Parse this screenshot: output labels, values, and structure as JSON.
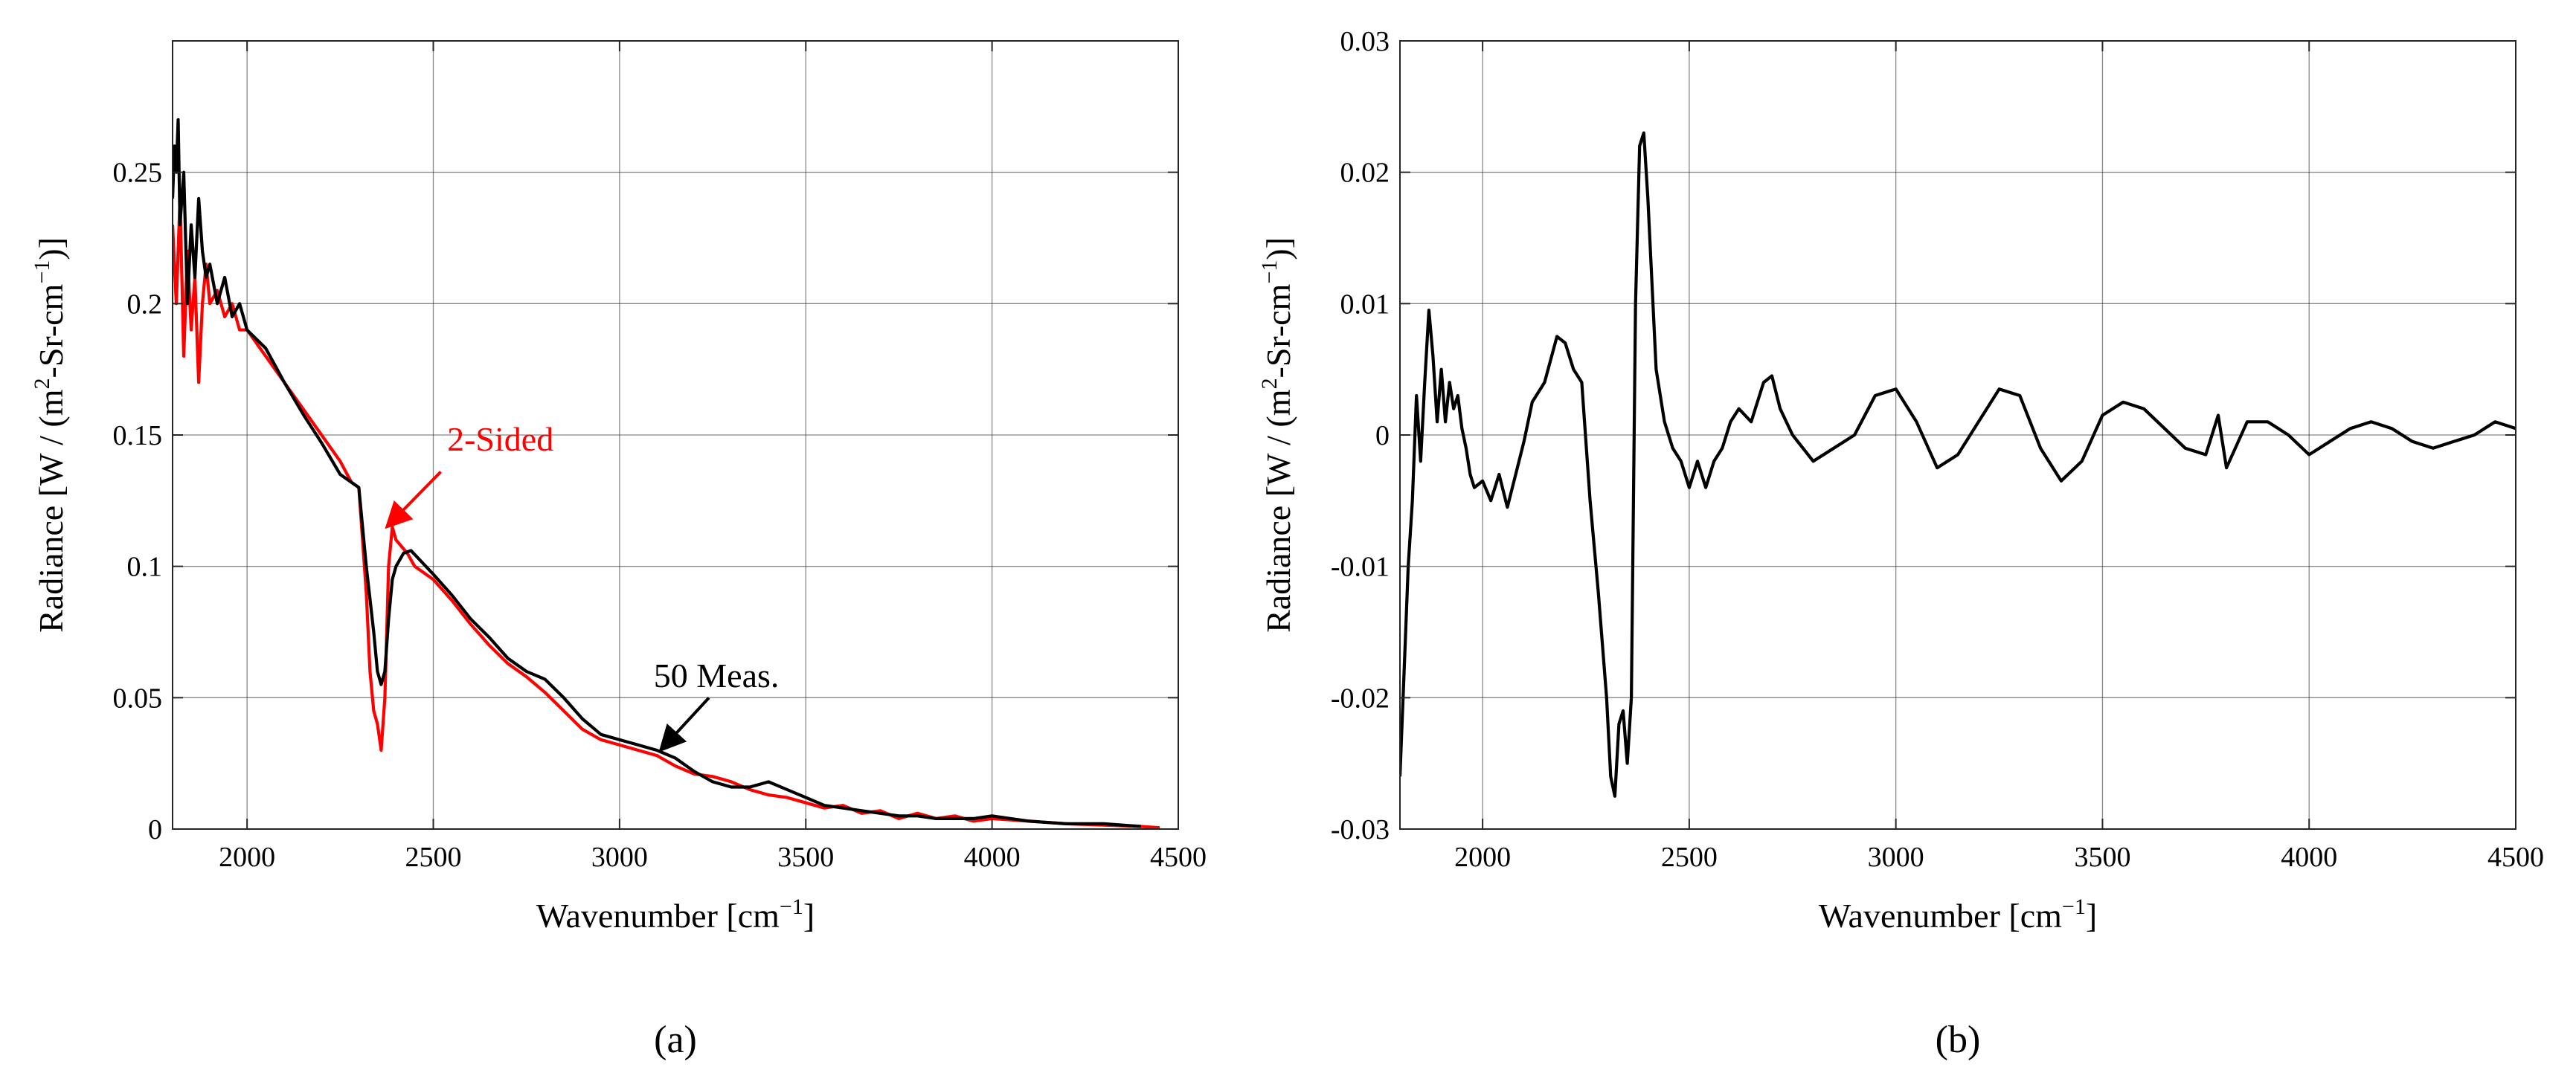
{
  "chart_data": [
    {
      "type": "line",
      "panel_label": "(a)",
      "xlabel": "Wavenumber [cm",
      "xlabel_sup": "−1",
      "xlabel_end": "]",
      "ylabel": "Radiance [W / (m",
      "ylabel_sup1": "2",
      "ylabel_mid": "-Sr-cm",
      "ylabel_sup2": "−1",
      "ylabel_end": ")]",
      "xlim": [
        1800,
        4500
      ],
      "ylim": [
        0,
        0.3
      ],
      "xticks": [
        2000,
        2500,
        3000,
        3500,
        4000,
        4500
      ],
      "xtick_labels": [
        "2000",
        "2500",
        "3000",
        "3500",
        "4000",
        "4500"
      ],
      "yticks": [
        0,
        0.05,
        0.1,
        0.15,
        0.2,
        0.25
      ],
      "ytick_labels": [
        "0",
        "0.05",
        "0.1",
        "0.15",
        "0.2",
        "0.25"
      ],
      "grid": true,
      "series": [
        {
          "color": "#ff0000",
          "x": [
            1800,
            1810,
            1820,
            1830,
            1840,
            1850,
            1860,
            1870,
            1880,
            1890,
            1900,
            1920,
            1940,
            1960,
            1980,
            2000,
            2050,
            2100,
            2150,
            2200,
            2250,
            2280,
            2300,
            2320,
            2330,
            2340,
            2350,
            2360,
            2370,
            2380,
            2390,
            2400,
            2430,
            2450,
            2500,
            2550,
            2600,
            2650,
            2700,
            2750,
            2800,
            2850,
            2900,
            2950,
            3000,
            3050,
            3100,
            3150,
            3200,
            3250,
            3300,
            3350,
            3400,
            3450,
            3500,
            3550,
            3600,
            3650,
            3700,
            3750,
            3800,
            3850,
            3900,
            3950,
            4000,
            4100,
            4200,
            4300,
            4400,
            4450
          ],
          "y": [
            0.23,
            0.2,
            0.24,
            0.18,
            0.22,
            0.19,
            0.21,
            0.17,
            0.2,
            0.215,
            0.2,
            0.205,
            0.195,
            0.2,
            0.19,
            0.19,
            0.18,
            0.17,
            0.16,
            0.15,
            0.14,
            0.132,
            0.13,
            0.09,
            0.06,
            0.045,
            0.04,
            0.03,
            0.05,
            0.1,
            0.115,
            0.11,
            0.105,
            0.1,
            0.095,
            0.087,
            0.078,
            0.07,
            0.063,
            0.058,
            0.052,
            0.045,
            0.038,
            0.034,
            0.032,
            0.03,
            0.028,
            0.024,
            0.021,
            0.02,
            0.018,
            0.015,
            0.013,
            0.012,
            0.01,
            0.008,
            0.009,
            0.006,
            0.007,
            0.004,
            0.006,
            0.004,
            0.005,
            0.003,
            0.004,
            0.003,
            0.002,
            0.0015,
            0.001,
            0.0005
          ]
        },
        {
          "color": "#000000",
          "x": [
            1800,
            1805,
            1810,
            1815,
            1820,
            1830,
            1840,
            1850,
            1860,
            1870,
            1880,
            1890,
            1900,
            1920,
            1940,
            1960,
            1980,
            2000,
            2050,
            2100,
            2150,
            2200,
            2250,
            2280,
            2300,
            2320,
            2340,
            2350,
            2360,
            2370,
            2380,
            2390,
            2400,
            2420,
            2440,
            2460,
            2500,
            2550,
            2600,
            2650,
            2700,
            2750,
            2800,
            2850,
            2900,
            2950,
            3000,
            3050,
            3100,
            3150,
            3200,
            3250,
            3300,
            3350,
            3400,
            3450,
            3500,
            3550,
            3600,
            3650,
            3700,
            3750,
            3800,
            3850,
            3900,
            3950,
            4000,
            4050,
            4100,
            4200,
            4300,
            4400
          ],
          "y": [
            0.24,
            0.26,
            0.25,
            0.27,
            0.23,
            0.25,
            0.2,
            0.23,
            0.21,
            0.24,
            0.22,
            0.21,
            0.215,
            0.2,
            0.21,
            0.195,
            0.2,
            0.19,
            0.183,
            0.17,
            0.158,
            0.147,
            0.135,
            0.132,
            0.13,
            0.1,
            0.075,
            0.06,
            0.055,
            0.06,
            0.08,
            0.095,
            0.1,
            0.105,
            0.106,
            0.103,
            0.097,
            0.089,
            0.08,
            0.073,
            0.065,
            0.06,
            0.057,
            0.05,
            0.042,
            0.036,
            0.034,
            0.032,
            0.03,
            0.027,
            0.022,
            0.018,
            0.016,
            0.016,
            0.018,
            0.015,
            0.012,
            0.009,
            0.008,
            0.007,
            0.006,
            0.005,
            0.005,
            0.004,
            0.004,
            0.004,
            0.005,
            0.004,
            0.003,
            0.002,
            0.002,
            0.001
          ]
        }
      ],
      "annotations": [
        {
          "text": "2-Sided",
          "color": "#ff0000",
          "text_x": 2680,
          "text_y": 0.144,
          "arrow_from": [
            2520,
            0.136
          ],
          "arrow_to": [
            2375,
            0.115
          ]
        },
        {
          "text": "50 Meas.",
          "color": "#000000",
          "text_x": 3260,
          "text_y": 0.054,
          "arrow_from": [
            3240,
            0.05
          ],
          "arrow_to": [
            3110,
            0.03
          ]
        }
      ]
    },
    {
      "type": "line",
      "panel_label": "(b)",
      "xlabel": "Wavenumber [cm",
      "xlabel_sup": "−1",
      "xlabel_end": "]",
      "ylabel": "Radiance [W / (m",
      "ylabel_sup1": "2",
      "ylabel_mid": "-Sr-cm",
      "ylabel_sup2": "−1",
      "ylabel_end": ")]",
      "xlim": [
        1800,
        4500
      ],
      "ylim": [
        -0.03,
        0.03
      ],
      "xticks": [
        2000,
        2500,
        3000,
        3500,
        4000,
        4500
      ],
      "xtick_labels": [
        "2000",
        "2500",
        "3000",
        "3500",
        "4000",
        "4500"
      ],
      "yticks": [
        -0.03,
        -0.02,
        -0.01,
        0,
        0.01,
        0.02,
        0.03
      ],
      "ytick_labels": [
        "-0.03",
        "-0.02",
        "-0.01",
        "0",
        "0.01",
        "0.02",
        "0.03"
      ],
      "grid": true,
      "series": [
        {
          "color": "#000000",
          "x": [
            1800,
            1810,
            1820,
            1830,
            1840,
            1850,
            1860,
            1870,
            1880,
            1890,
            1900,
            1910,
            1920,
            1930,
            1940,
            1950,
            1960,
            1970,
            1980,
            2000,
            2020,
            2040,
            2060,
            2080,
            2100,
            2120,
            2150,
            2180,
            2200,
            2220,
            2240,
            2260,
            2280,
            2300,
            2310,
            2320,
            2330,
            2340,
            2350,
            2360,
            2370,
            2380,
            2390,
            2400,
            2420,
            2440,
            2460,
            2480,
            2500,
            2520,
            2540,
            2560,
            2580,
            2600,
            2620,
            2650,
            2680,
            2700,
            2720,
            2750,
            2800,
            2850,
            2900,
            2950,
            3000,
            3050,
            3100,
            3150,
            3200,
            3250,
            3300,
            3350,
            3400,
            3450,
            3500,
            3550,
            3600,
            3650,
            3700,
            3750,
            3780,
            3800,
            3850,
            3900,
            3950,
            4000,
            4050,
            4100,
            4150,
            4200,
            4250,
            4300,
            4350,
            4400,
            4450,
            4500
          ],
          "y": [
            -0.026,
            -0.018,
            -0.01,
            -0.005,
            0.003,
            -0.002,
            0.004,
            0.0095,
            0.006,
            0.001,
            0.005,
            0.001,
            0.004,
            0.002,
            0.003,
            0.0005,
            -0.001,
            -0.003,
            -0.004,
            -0.0035,
            -0.005,
            -0.003,
            -0.0055,
            -0.003,
            -0.0005,
            0.0025,
            0.004,
            0.0075,
            0.007,
            0.005,
            0.004,
            -0.005,
            -0.012,
            -0.02,
            -0.026,
            -0.0275,
            -0.022,
            -0.021,
            -0.025,
            -0.02,
            0.01,
            0.022,
            0.023,
            0.018,
            0.005,
            0.001,
            -0.001,
            -0.002,
            -0.004,
            -0.002,
            -0.004,
            -0.002,
            -0.001,
            0.001,
            0.002,
            0.001,
            0.004,
            0.0045,
            0.002,
            0.0,
            -0.002,
            -0.001,
            0.0,
            0.003,
            0.0035,
            0.001,
            -0.0025,
            -0.0015,
            0.001,
            0.0035,
            0.003,
            -0.001,
            -0.0035,
            -0.002,
            0.0015,
            0.0025,
            0.002,
            0.0005,
            -0.001,
            -0.0015,
            0.0015,
            -0.0025,
            0.001,
            0.001,
            0.0,
            -0.0015,
            -0.0005,
            0.0005,
            0.001,
            0.0005,
            -0.0005,
            -0.001,
            -0.0005,
            0.0,
            0.001,
            0.0005
          ]
        }
      ]
    }
  ]
}
